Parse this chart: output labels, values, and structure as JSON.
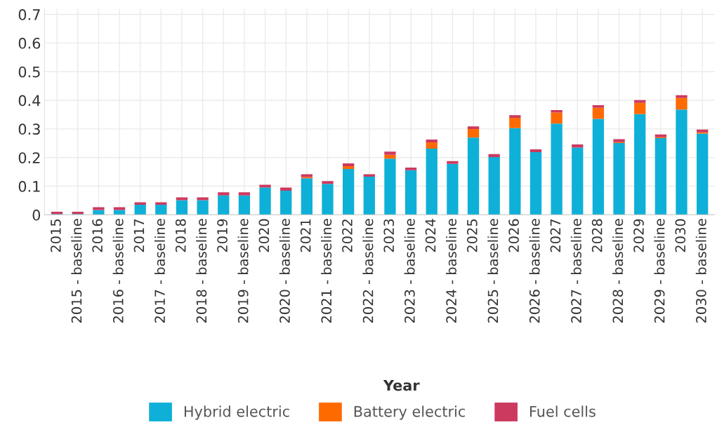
{
  "chart_data": {
    "type": "bar",
    "stacked": true,
    "xlabel": "Year",
    "categories": [
      "2015",
      "2015 - baseline",
      "2016",
      "2016 - baseline",
      "2017",
      "2017 - baseline",
      "2018",
      "2018 - baseline",
      "2019",
      "2019 - baseline",
      "2020",
      "2020 - baseline",
      "2021",
      "2021 - baseline",
      "2022",
      "2022 - baseline",
      "2023",
      "2023 - baseline",
      "2024",
      "2024 - baseline",
      "2025",
      "2025 - baseline",
      "2026",
      "2026 - baseline",
      "2027",
      "2027 - baseline",
      "2028",
      "2028 - baseline",
      "2029",
      "2029 - baseline",
      "2030",
      "2030 - baseline"
    ],
    "series": [
      {
        "name": "Hybrid electric",
        "color": "#0fb0d8",
        "values": [
          0.003,
          0.003,
          0.017,
          0.017,
          0.035,
          0.035,
          0.051,
          0.051,
          0.068,
          0.068,
          0.095,
          0.084,
          0.128,
          0.108,
          0.16,
          0.133,
          0.196,
          0.156,
          0.231,
          0.178,
          0.27,
          0.202,
          0.303,
          0.219,
          0.319,
          0.235,
          0.335,
          0.251,
          0.352,
          0.268,
          0.368,
          0.284
        ]
      },
      {
        "name": "Battery electric",
        "color": "#ff6a00",
        "values": [
          0,
          0,
          null,
          null,
          0,
          0,
          0,
          0,
          0,
          0,
          null,
          0,
          0.004,
          0,
          0.01,
          0,
          0.014,
          0,
          0.022,
          0,
          0.03,
          0,
          0.036,
          0,
          0.038,
          0,
          0.039,
          0.003,
          0.039,
          0.003,
          0.04,
          0.004
        ]
      },
      {
        "name": "Fuel cells",
        "color": "#cc3a5f",
        "values": [
          0.008,
          0.008,
          0.01,
          0.01,
          0.009,
          0.009,
          0.01,
          0.01,
          0.011,
          0.011,
          0.01,
          0.011,
          0.01,
          0.01,
          0.01,
          0.009,
          0.011,
          0.009,
          0.01,
          0.01,
          0.009,
          0.01,
          0.009,
          0.01,
          0.009,
          0.011,
          0.009,
          0.01,
          0.01,
          0.01,
          0.01,
          0.01
        ]
      }
    ],
    "ylim": [
      0,
      0.72
    ],
    "yticks": [
      0,
      0.1,
      0.2,
      0.3,
      0.4,
      0.5,
      0.6,
      0.7
    ],
    "grid": true,
    "legend": "bottom"
  }
}
